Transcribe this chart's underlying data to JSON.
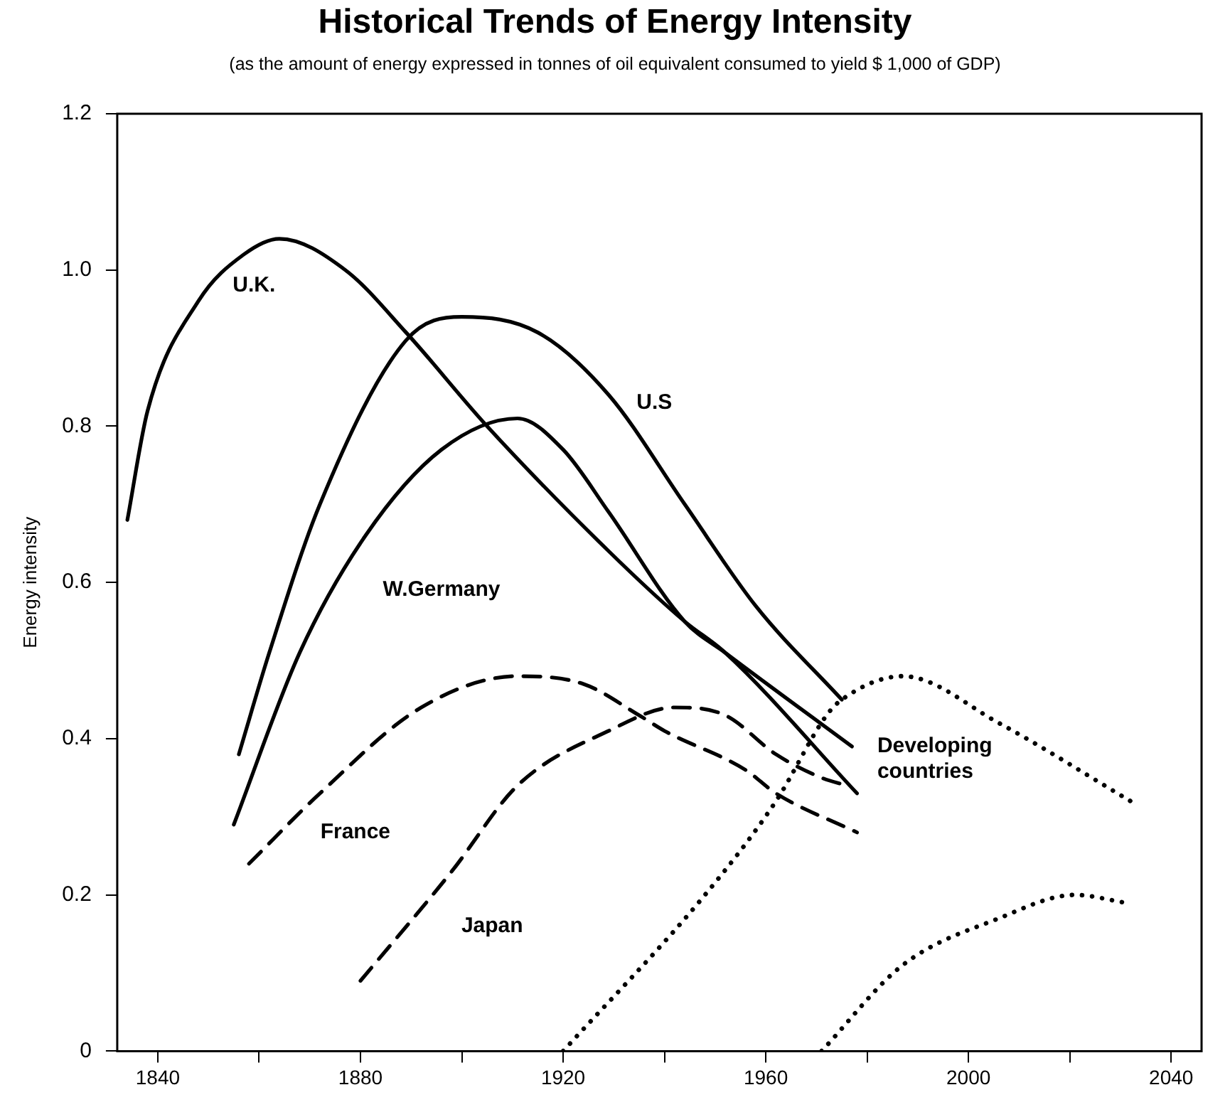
{
  "chart_data": {
    "type": "line",
    "title": "Historical Trends of Energy Intensity",
    "subtitle": "(as the amount of energy expressed in tonnes of oil equivalent consumed to yield $ 1,000 of GDP)",
    "ylabel": "Energy intensity",
    "xlim": [
      1832,
      2046
    ],
    "ylim": [
      0,
      1.2
    ],
    "xticks": [
      1840,
      {
        "value": 1860,
        "label": null
      },
      1880,
      {
        "value": 1900,
        "label": null
      },
      1920,
      {
        "value": 1940,
        "label": null
      },
      1960,
      {
        "value": 1980,
        "label": null
      },
      2000,
      {
        "value": 2020,
        "label": null
      },
      2040
    ],
    "yticks": [
      0,
      0.2,
      0.4,
      0.6,
      0.8,
      {
        "value": 1,
        "label": "1.0"
      },
      1.2
    ],
    "grid": false,
    "legend": false,
    "marker": "none",
    "series": [
      {
        "name": "U.K.",
        "color": "#000000",
        "line_style": "solid",
        "x": [
          1834,
          1838,
          1848,
          1857,
          1864,
          1877,
          1889,
          1905,
          1929,
          1944,
          1952,
          1978
        ],
        "values": [
          0.68,
          0.82,
          0.96,
          1.02,
          1.04,
          1.0,
          0.92,
          0.8,
          0.64,
          0.55,
          0.51,
          0.33
        ]
      },
      {
        "name": "U.S",
        "color": "#000000",
        "line_style": "solid",
        "x": [
          1856,
          1862,
          1872,
          1889,
          1900,
          1915,
          1929,
          1944,
          1958,
          1975
        ],
        "values": [
          0.38,
          0.51,
          0.7,
          0.91,
          0.94,
          0.92,
          0.84,
          0.7,
          0.57,
          0.45
        ]
      },
      {
        "name": "W.Germany",
        "color": "#000000",
        "line_style": "solid",
        "x": [
          1855,
          1868,
          1881,
          1896,
          1911,
          1920,
          1929,
          1944,
          1952,
          1977
        ],
        "values": [
          0.29,
          0.51,
          0.66,
          0.77,
          0.81,
          0.77,
          0.69,
          0.55,
          0.51,
          0.39
        ]
      },
      {
        "name": "France",
        "color": "#000000",
        "line_style": "dashed",
        "x": [
          1858,
          1872,
          1892,
          1911,
          1924,
          1935,
          1940,
          1956,
          1962,
          1978
        ],
        "values": [
          0.24,
          0.33,
          0.44,
          0.48,
          0.47,
          0.43,
          0.41,
          0.36,
          0.33,
          0.28
        ]
      },
      {
        "name": "Japan",
        "color": "#000000",
        "line_style": "dashed",
        "x": [
          1880,
          1898,
          1911,
          1929,
          1942,
          1952,
          1962,
          1971,
          1976
        ],
        "values": [
          0.09,
          0.23,
          0.34,
          0.41,
          0.44,
          0.43,
          0.38,
          0.35,
          0.34
        ]
      },
      {
        "name": "Developing countries",
        "color": "#000000",
        "line_style": "dotted",
        "x": [
          1920,
          1948,
          1962,
          1972,
          1975,
          1987,
          2006,
          2032
        ],
        "values": [
          0,
          0.2,
          0.32,
          0.43,
          0.45,
          0.48,
          0.42,
          0.32
        ]
      },
      {
        "color": "#000000",
        "line_style": "dotted",
        "x": [
          1971,
          1987,
          2006,
          2021,
          2031
        ],
        "values": [
          0,
          0.11,
          0.17,
          0.2,
          0.19
        ]
      }
    ]
  }
}
